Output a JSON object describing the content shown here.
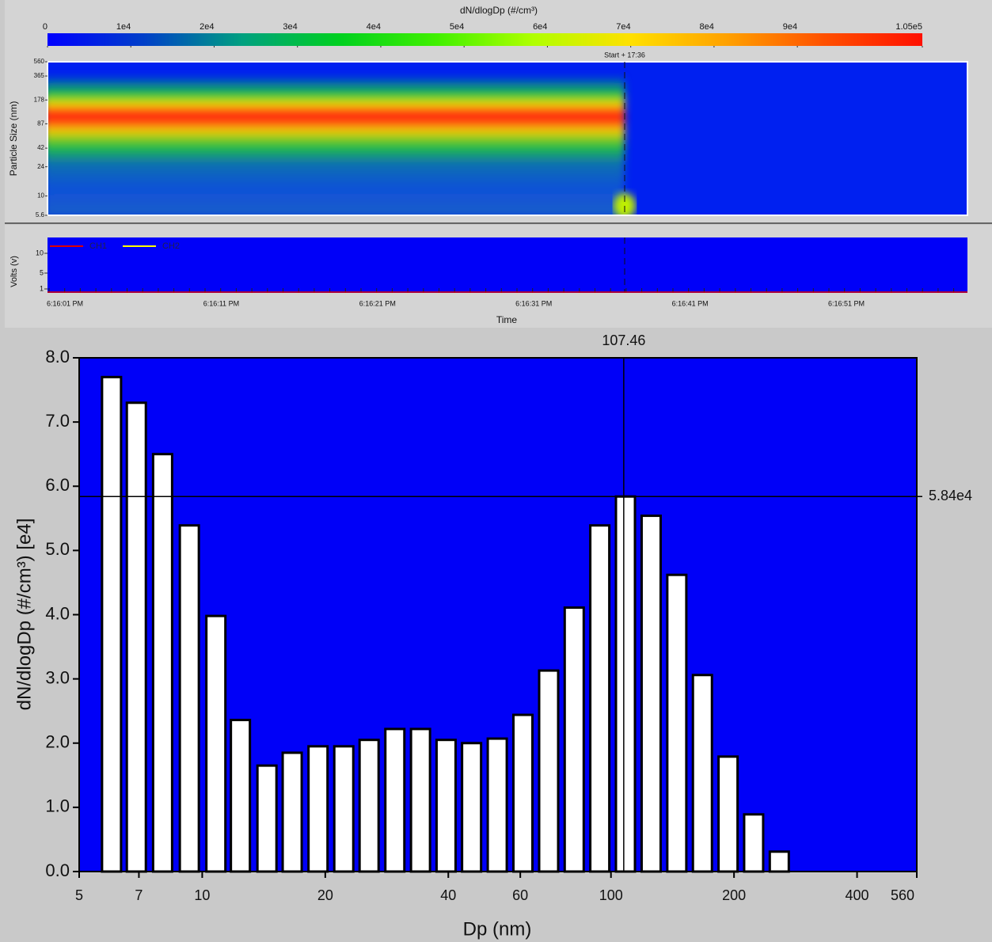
{
  "chart_data": [
    {
      "type": "heatmap",
      "title": "dN/dlogDp (#/cm³)",
      "clim": [
        0,
        105000
      ],
      "cticks": [
        0,
        {
          "value": 10000,
          "label": "1e4"
        },
        {
          "value": 20000,
          "label": "2e4"
        },
        {
          "value": 30000,
          "label": "3e4"
        },
        {
          "value": 40000,
          "label": "4e4"
        },
        {
          "value": 50000,
          "label": "5e4"
        },
        {
          "value": 60000,
          "label": "6e4"
        },
        {
          "value": 70000,
          "label": "7e4"
        },
        {
          "value": 80000,
          "label": "8e4"
        },
        {
          "value": 90000,
          "label": "9e4"
        },
        {
          "value": 105000,
          "label": "1.05e5"
        }
      ],
      "colormap": [
        "#0000ff",
        "#0040c8",
        "#00a080",
        "#00d020",
        "#40f000",
        "#b0ff00",
        "#ffe000",
        "#ffa000",
        "#ff5000",
        "#ff1000"
      ],
      "ylabel": "Particle Size (nm)",
      "log_y": true,
      "ylim": [
        5.6,
        560
      ],
      "yticks": [
        5.6,
        10,
        24,
        42,
        87,
        178,
        365,
        560
      ],
      "annotation": "Start + 17:36"
    },
    {
      "type": "line",
      "ylabel": "Volts (v)",
      "xlabel": "Time",
      "x": [
        "6:16:01 PM",
        "6:16:11 PM",
        "6:16:21 PM",
        "6:16:31 PM",
        "6:16:41 PM",
        "6:16:51 PM"
      ],
      "ylim": [
        0,
        14
      ],
      "yticks": [
        1,
        5,
        10
      ],
      "series": [
        {
          "name": "CH1",
          "color": "#e00000"
        },
        {
          "name": "CH2",
          "color": "#ffff00"
        }
      ]
    },
    {
      "type": "bar",
      "xlabel": "Dp (nm)",
      "ylabel": "dN/dlogDp (#/cm³) [e4]",
      "log_x": true,
      "xlim": [
        5,
        560
      ],
      "xticks": [
        5,
        7,
        10,
        20,
        40,
        60,
        100,
        200,
        400,
        560
      ],
      "ylim": [
        0,
        8
      ],
      "yticks": [
        {
          "value": 0,
          "label": "0.0"
        },
        {
          "value": 1,
          "label": "1.0"
        },
        {
          "value": 2,
          "label": "2.0"
        },
        {
          "value": 3,
          "label": "3.0"
        },
        {
          "value": 4,
          "label": "4.0"
        },
        {
          "value": 5,
          "label": "5.0"
        },
        {
          "value": 6,
          "label": "6.0"
        },
        {
          "value": 7,
          "label": "7.0"
        },
        {
          "value": 8,
          "label": "8.0"
        }
      ],
      "x": [
        6.0,
        6.9,
        8.0,
        9.3,
        10.8,
        12.4,
        14.4,
        16.6,
        19.2,
        22.2,
        25.6,
        29.6,
        34.2,
        39.5,
        45.6,
        52.7,
        60.9,
        70.4,
        81.3,
        93.9,
        108.5,
        125.4,
        144.9,
        167.4,
        193.4,
        223.4,
        258.1
      ],
      "values": [
        7.7,
        7.3,
        6.5,
        5.39,
        3.98,
        2.36,
        1.65,
        1.85,
        1.95,
        1.95,
        2.05,
        2.22,
        2.22,
        2.05,
        2.0,
        2.07,
        2.44,
        3.13,
        4.11,
        5.39,
        5.84,
        5.54,
        4.62,
        3.06,
        1.79,
        0.89,
        0.31
      ],
      "color": "#ffffff",
      "background": "#0000f8",
      "cursor": {
        "x": 107.46,
        "y": {
          "value": 5.84,
          "label": "5.84e4"
        }
      }
    }
  ]
}
